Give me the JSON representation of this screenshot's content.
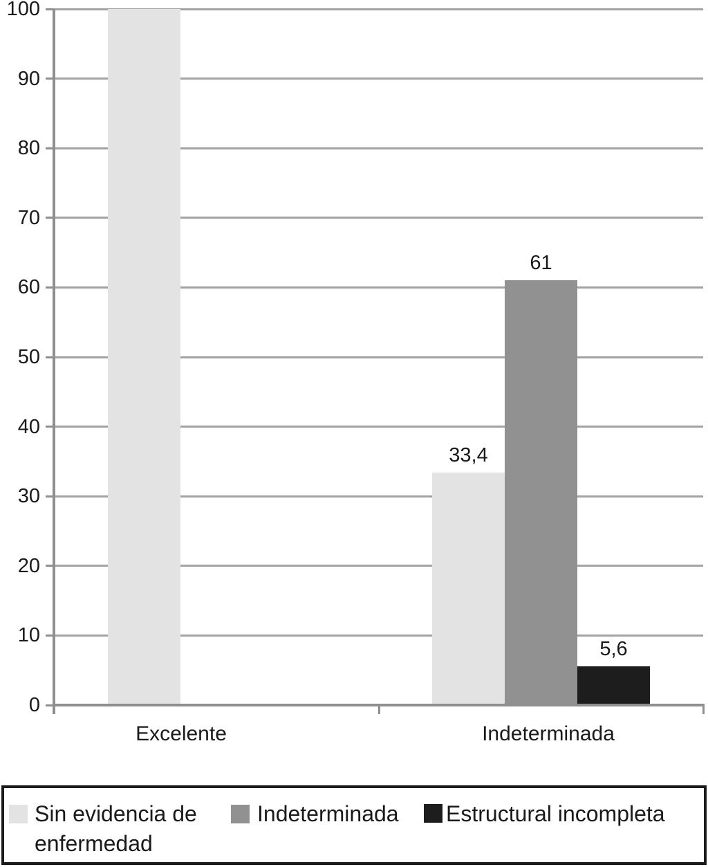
{
  "chart_data": {
    "type": "bar",
    "title": "",
    "xlabel": "",
    "ylabel": "",
    "categories": [
      "Excelente",
      "Indeterminada"
    ],
    "series": [
      {
        "name": "Sin evidencia de enfermedad",
        "color": "#e3e3e3",
        "values": [
          100,
          33.4
        ],
        "data_labels": [
          "",
          "33,4"
        ]
      },
      {
        "name": "Indeterminada",
        "color": "#919191",
        "values": [
          0,
          61
        ],
        "data_labels": [
          "",
          "61"
        ]
      },
      {
        "name": "Estructural incompleta",
        "color": "#1d1d1d",
        "values": [
          0,
          5.6
        ],
        "data_labels": [
          "",
          "5,6"
        ]
      }
    ],
    "y_axis": {
      "min": 0,
      "max": 100,
      "step": 10,
      "tick_labels": [
        "0",
        "10",
        "20",
        "30",
        "40",
        "50",
        "60",
        "70",
        "80",
        "90",
        "100"
      ]
    },
    "grid": true,
    "legend_position": "bottom",
    "colors": {
      "gridline": "#a2a2a2",
      "axis": "#8f8f8f",
      "text": "#1a1a1a",
      "background": "#ffffff"
    }
  },
  "legend": {
    "items": [
      {
        "label": "Sin evidencia de enfermedad",
        "color": "#e3e3e3"
      },
      {
        "label": "Indeterminada",
        "color": "#919191"
      },
      {
        "label": "Estructural incompleta",
        "color": "#1d1d1d"
      }
    ]
  }
}
